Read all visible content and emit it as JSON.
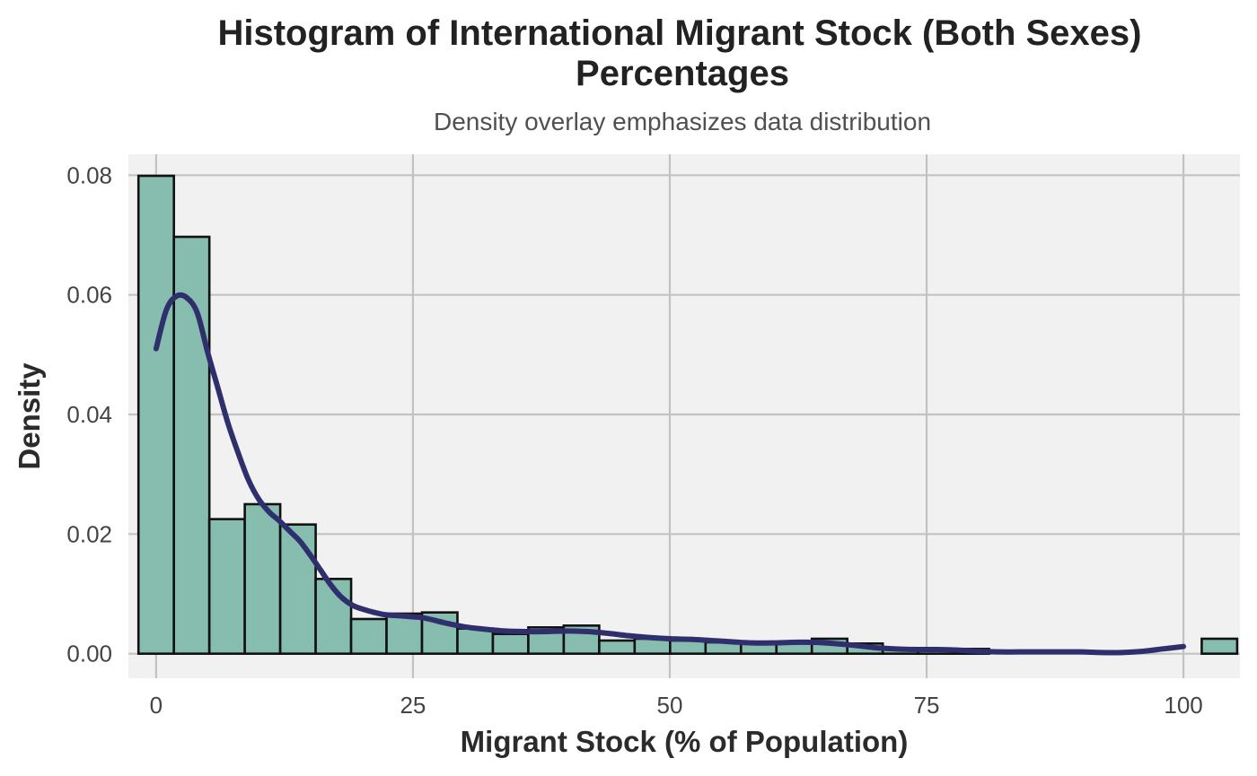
{
  "chart_data": {
    "type": "bar",
    "title_lines": [
      "Histogram of International Migrant Stock (Both Sexes)",
      "Percentages"
    ],
    "subtitle": "Density overlay emphasizes data distribution",
    "xlabel": "Migrant Stock (% of Population)",
    "ylabel": "Density",
    "xlim": [
      -2.7,
      105.5
    ],
    "ylim": [
      -0.0041,
      0.0835
    ],
    "xticks": [
      0,
      25,
      50,
      75,
      100
    ],
    "xtick_labels": [
      "0",
      "25",
      "50",
      "75",
      "100"
    ],
    "yticks": [
      0,
      0.02,
      0.04,
      0.06,
      0.08
    ],
    "ytick_labels": [
      "0.00",
      "0.02",
      "0.04",
      "0.06",
      "0.08"
    ],
    "grid": true,
    "bin_width": 3.45,
    "bin_start": -1.72,
    "bin_values": [
      0.0799,
      0.0697,
      0.0225,
      0.025,
      0.0216,
      0.0125,
      0.0058,
      0.0067,
      0.0069,
      0.0042,
      0.0033,
      0.0044,
      0.0047,
      0.0022,
      0.0025,
      0.0022,
      0.0019,
      0.0017,
      0.0017,
      0.0025,
      0.0017,
      0.0008,
      0.0008,
      0.0008,
      0.0,
      0.0,
      0.0,
      0.0,
      0.0,
      0.0,
      0.0025
    ],
    "density_curve": {
      "x": [
        0,
        1,
        2,
        3,
        4,
        5,
        6,
        7,
        8,
        9,
        10,
        11,
        12,
        13,
        14,
        15,
        16,
        17,
        18,
        19,
        20,
        22,
        24,
        26,
        28,
        30,
        32,
        34,
        36,
        38,
        40,
        42,
        44,
        46,
        48,
        50,
        52,
        54,
        56,
        58,
        60,
        62,
        64,
        66,
        68,
        70,
        72,
        74,
        76,
        78,
        80,
        82,
        84,
        86,
        88,
        90,
        92,
        94,
        96,
        98,
        100
      ],
      "y": [
        0.051,
        0.0575,
        0.0598,
        0.0595,
        0.057,
        0.0505,
        0.0445,
        0.0385,
        0.0335,
        0.029,
        0.0258,
        0.0237,
        0.0222,
        0.0205,
        0.0188,
        0.0165,
        0.014,
        0.0115,
        0.0095,
        0.0082,
        0.0075,
        0.0066,
        0.0063,
        0.006,
        0.0052,
        0.0045,
        0.0041,
        0.0038,
        0.0037,
        0.0037,
        0.0038,
        0.0037,
        0.0034,
        0.003,
        0.0027,
        0.0025,
        0.0024,
        0.0022,
        0.002,
        0.0018,
        0.0018,
        0.0019,
        0.0019,
        0.0017,
        0.0014,
        0.001,
        0.0008,
        0.0007,
        0.0007,
        0.0006,
        0.0004,
        0.0003,
        0.0003,
        0.0003,
        0.0003,
        0.0003,
        0.0002,
        0.0002,
        0.0004,
        0.0008,
        0.0012
      ]
    }
  },
  "colors": {
    "panel_background": "#f1f1f1",
    "bar_fill": "#86bdae",
    "bar_stroke": "#111111",
    "density_line": "#302f6e"
  }
}
